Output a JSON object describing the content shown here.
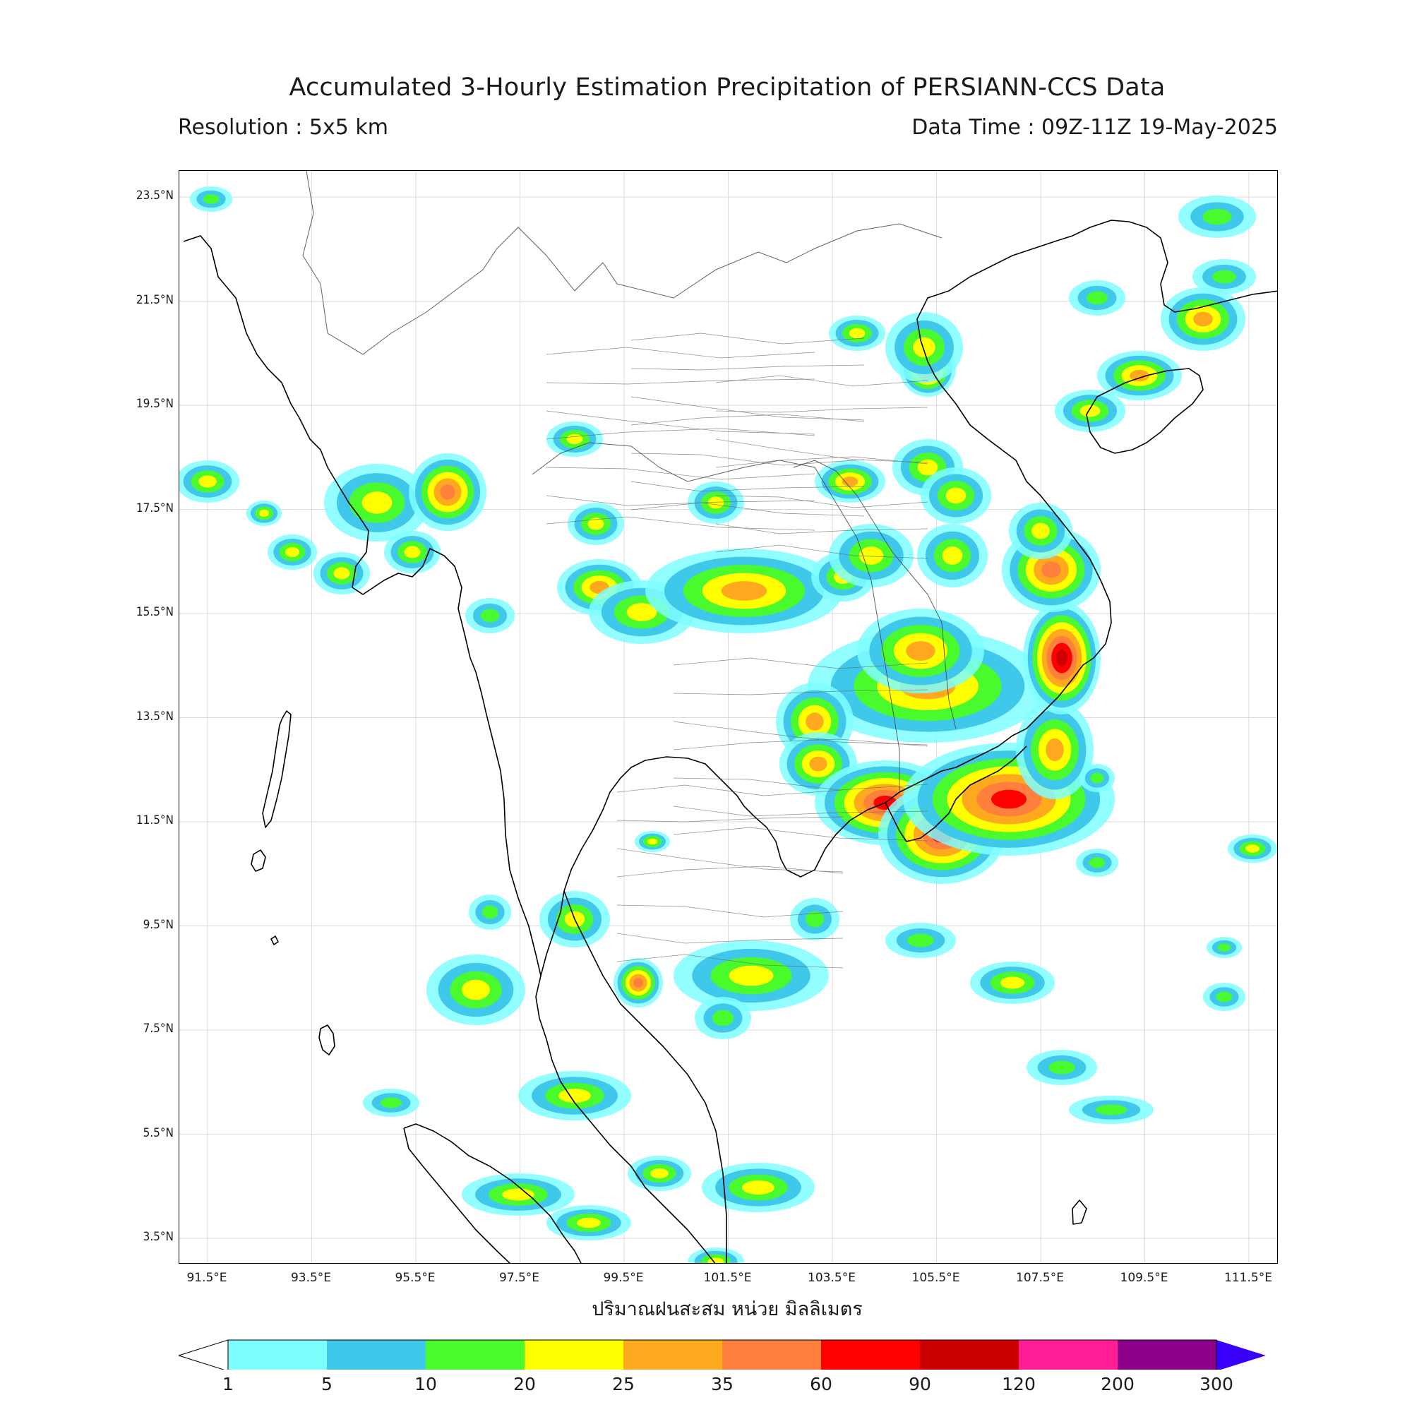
{
  "header": {
    "title": "Accumulated 3-Hourly Estimation Precipitation of PERSIANN-CCS Data",
    "resolution": "Resolution : 5x5 km",
    "data_time": "Data Time : 09Z-11Z 19-May-2025"
  },
  "axes": {
    "lat_labels": [
      "23.5°N",
      "21.5°N",
      "19.5°N",
      "17.5°N",
      "15.5°N",
      "13.5°N",
      "11.5°N",
      "9.5°N",
      "7.5°N",
      "5.5°N",
      "3.5°N"
    ],
    "lon_labels": [
      "91.5°E",
      "93.5°E",
      "95.5°E",
      "97.5°E",
      "99.5°E",
      "101.5°E",
      "103.5°E",
      "105.5°E",
      "107.5°E",
      "109.5°E",
      "111.5°E"
    ],
    "xlabel": "ปริมาณฝนสะสม หน่วย มิลลิเมตร"
  },
  "colorbar": {
    "ticks": [
      "1",
      "5",
      "10",
      "20",
      "25",
      "35",
      "60",
      "90",
      "120",
      "200",
      "300"
    ],
    "colors": [
      "#7ffeff",
      "#40c8eb",
      "#4bfa2c",
      "#ffff00",
      "#ffaa1e",
      "#ff7f3c",
      "#ff0000",
      "#cc0000",
      "#ff1e96",
      "#8c008c"
    ],
    "over_color": "#3a00ff"
  },
  "map": {
    "grid": "on",
    "land_color": "#ffffff",
    "coast_color": "#000000"
  }
}
